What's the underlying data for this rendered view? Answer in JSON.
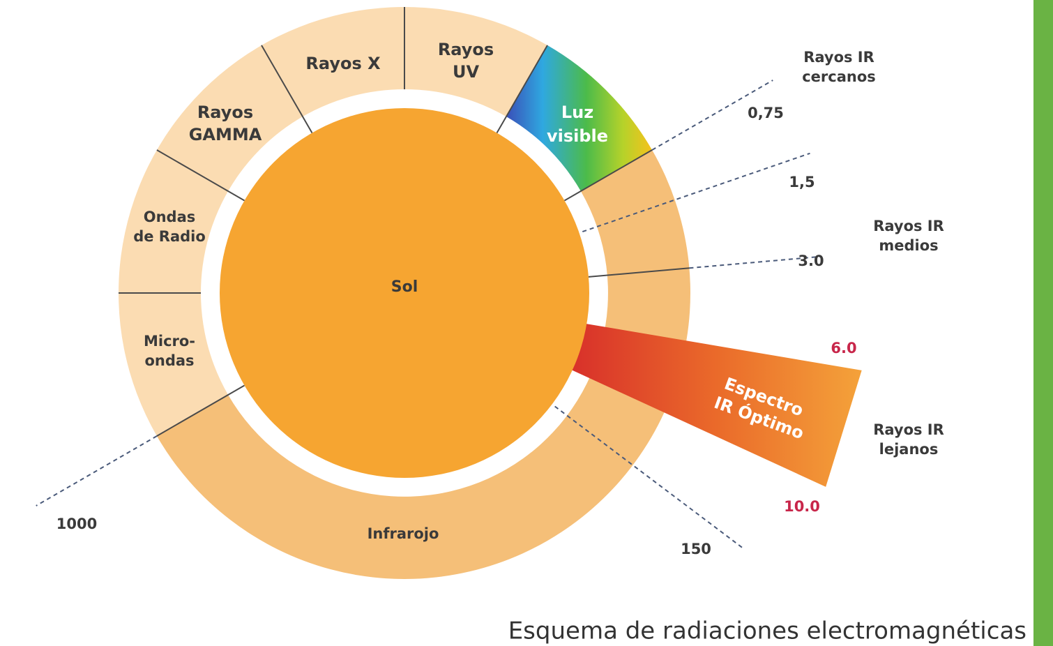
{
  "sun_label": "Sol",
  "bands": [
    {
      "lines": [
        "Rayos X"
      ]
    },
    {
      "lines": [
        "Rayos",
        "UV"
      ]
    },
    {
      "lines": [
        "Rayos",
        "GAMMA"
      ]
    },
    {
      "lines": [
        "Ondas",
        "de Radio"
      ]
    },
    {
      "lines": [
        "Micro-",
        "ondas"
      ]
    },
    {
      "lines": [
        "Infrarojo"
      ]
    },
    {
      "lines": [
        "Luz",
        "visible"
      ]
    },
    {
      "lines": [
        "Espectro",
        "IR Óptimo"
      ]
    }
  ],
  "ir_labels": [
    {
      "lines": [
        "Rayos IR",
        "cercanos"
      ]
    },
    {
      "lines": [
        "Rayos IR",
        "medios"
      ]
    },
    {
      "lines": [
        "Rayos IR",
        "lejanos"
      ]
    }
  ],
  "markers": [
    "0,75",
    "1,5",
    "3.0",
    "6.0",
    "10.0",
    "1000",
    "150"
  ],
  "caption": "Esquema de radiaciones electromagnéticas"
}
